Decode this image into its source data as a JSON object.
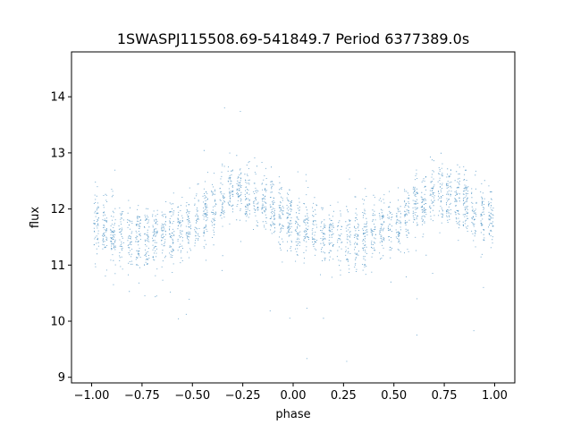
{
  "chart_data": {
    "type": "scatter",
    "title": "1SWASPJ115508.69-541849.7 Period 6377389.0s",
    "xlabel": "phase",
    "ylabel": "flux",
    "xlim": [
      -1.1,
      1.1
    ],
    "ylim": [
      8.9,
      14.8
    ],
    "xticks": [
      -1.0,
      -0.75,
      -0.5,
      -0.25,
      0.0,
      0.25,
      0.5,
      0.75,
      1.0
    ],
    "xtick_labels": [
      "−1.00",
      "−0.75",
      "−0.50",
      "−0.25",
      "0.00",
      "0.25",
      "0.50",
      "0.75",
      "1.00"
    ],
    "yticks": [
      9,
      10,
      11,
      12,
      13,
      14
    ],
    "ytick_labels": [
      "9",
      "10",
      "11",
      "12",
      "13",
      "14"
    ],
    "grid": false,
    "legend": "none",
    "marker_color": "#1f77b4",
    "series": [
      {
        "description_hint": "phase-folded light curve, mirrored over two cycles",
        "profile_phase": [
          0.0,
          0.1,
          0.2,
          0.3,
          0.4,
          0.5,
          0.6,
          0.7,
          0.8,
          0.9,
          1.0
        ],
        "profile_flux": [
          11.75,
          11.55,
          11.5,
          11.5,
          11.6,
          11.7,
          12.0,
          12.3,
          12.2,
          12.0,
          11.75
        ],
        "profile_scatter": 0.45,
        "approx_point_count_per_cycle": 9000
      }
    ]
  }
}
